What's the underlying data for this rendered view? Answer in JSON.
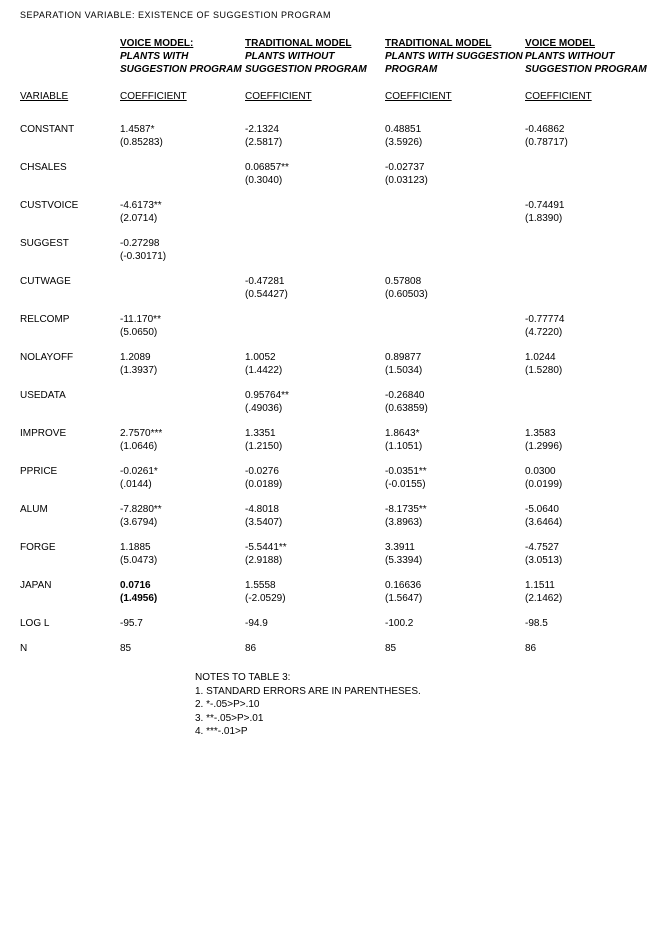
{
  "page_title": "SEPARATION VARIABLE: EXISTENCE OF SUGGESTION PROGRAM",
  "columns": [
    {
      "title": "VOICE MODEL:",
      "sub": "PLANTS WITH SUGGESTION PROGRAM"
    },
    {
      "title": "TRADITIONAL MODEL",
      "sub": "PLANTS WITHOUT SUGGESTION PROGRAM"
    },
    {
      "title": "TRADITIONAL MODEL",
      "sub": "PLANTS WITH SUGGESTION PROGRAM"
    },
    {
      "title": "VOICE MODEL",
      "sub": "PLANTS WITHOUT SUGGESTION PROGRAM"
    }
  ],
  "variable_header": "VARIABLE",
  "coef_header": "COEFFICIENT",
  "rows": [
    {
      "name": "CONSTANT",
      "c0": {
        "v": "1.4587*",
        "se": "(0.85283)"
      },
      "c1": {
        "v": "-2.1324",
        "se": "(2.5817)"
      },
      "c2": {
        "v": "0.48851",
        "se": "(3.5926)"
      },
      "c3": {
        "v": "-0.46862",
        "se": "(0.78717)"
      }
    },
    {
      "name": "CHSALES",
      "c0": null,
      "c1": {
        "v": "0.06857**",
        "se": "(0.3040)"
      },
      "c2": {
        "v": "-0.02737",
        "se": "(0.03123)"
      },
      "c3": null
    },
    {
      "name": "CUSTVOICE",
      "c0": {
        "v": "-4.6173**",
        "se": "(2.0714)"
      },
      "c1": null,
      "c2": null,
      "c3": {
        "v": "-0.74491",
        "se": "(1.8390)"
      }
    },
    {
      "name": "SUGGEST",
      "c0": {
        "v": "-0.27298",
        "se": "(-0.30171)"
      },
      "c1": null,
      "c2": null,
      "c3": null
    },
    {
      "name": "CUTWAGE",
      "c0": null,
      "c1": {
        "v": "-0.47281",
        "se": "(0.54427)"
      },
      "c2": {
        "v": "0.57808",
        "se": "(0.60503)"
      },
      "c3": null
    },
    {
      "name": "RELCOMP",
      "c0": {
        "v": "-11.170**",
        "se": "(5.0650)"
      },
      "c1": null,
      "c2": null,
      "c3": {
        "v": "-0.77774",
        "se": "(4.7220)"
      }
    },
    {
      "name": "NOLAYOFF",
      "c0": {
        "v": "1.2089",
        "se": "(1.3937)"
      },
      "c1": {
        "v": "1.0052",
        "se": "(1.4422)"
      },
      "c2": {
        "v": "0.89877",
        "se": "(1.5034)"
      },
      "c3": {
        "v": "1.0244",
        "se": "(1.5280)"
      }
    },
    {
      "name": "USEDATA",
      "c0": null,
      "c1": {
        "v": "0.95764**",
        "se": "(.49036)"
      },
      "c2": {
        "v": "-0.26840",
        "se": "(0.63859)"
      },
      "c3": null
    },
    {
      "name": "IMPROVE",
      "c0": {
        "v": "2.7570***",
        "se": "(1.0646)"
      },
      "c1": {
        "v": "1.3351",
        "se": "(1.2150)"
      },
      "c2": {
        "v": "1.8643*",
        "se": "(1.1051)"
      },
      "c3": {
        "v": "1.3583",
        "se": "(1.2996)"
      }
    },
    {
      "name": "PPRICE",
      "c0": {
        "v": "-0.0261*",
        "se": "(.0144)"
      },
      "c1": {
        "v": "-0.0276",
        "se": "(0.0189)"
      },
      "c2": {
        "v": "-0.0351**",
        "se": "(-0.0155)"
      },
      "c3": {
        "v": "0.0300",
        "se": "(0.0199)"
      }
    },
    {
      "name": "ALUM",
      "c0": {
        "v": "-7.8280**",
        "se": "(3.6794)"
      },
      "c1": {
        "v": "-4.8018",
        "se": "(3.5407)"
      },
      "c2": {
        "v": "-8.1735**",
        "se": "(3.8963)"
      },
      "c3": {
        "v": "-5.0640",
        "se": "(3.6464)"
      }
    },
    {
      "name": "FORGE",
      "c0": {
        "v": "1.1885",
        "se": "(5.0473)"
      },
      "c1": {
        "v": "-5.5441**",
        "se": "(2.9188)"
      },
      "c2": {
        "v": "3.3911",
        "se": "(5.3394)"
      },
      "c3": {
        "v": "-4.7527",
        "se": "(3.0513)"
      }
    },
    {
      "name": "JAPAN",
      "c0": {
        "v": "0.0716",
        "se": "(1.4956)",
        "bold": true
      },
      "c1": {
        "v": "1.5558",
        "se": "(-2.0529)"
      },
      "c2": {
        "v": "0.16636",
        "se": "(1.5647)"
      },
      "c3": {
        "v": "1.1511",
        "se": "(2.1462)"
      }
    },
    {
      "name": "LOG L",
      "single": true,
      "c0": {
        "v": "-95.7"
      },
      "c1": {
        "v": "-94.9"
      },
      "c2": {
        "v": "-100.2"
      },
      "c3": {
        "v": "-98.5"
      }
    },
    {
      "name": "N",
      "single": true,
      "c0": {
        "v": "85"
      },
      "c1": {
        "v": "86"
      },
      "c2": {
        "v": "85"
      },
      "c3": {
        "v": "86"
      }
    }
  ],
  "notes": {
    "heading": "NOTES TO TABLE 3:",
    "lines": [
      "1. STANDARD ERRORS ARE IN PARENTHESES.",
      "2.  *-.05>P>.10",
      "3.  **-.05>P>.01",
      "4.  ***-.01>P"
    ]
  }
}
